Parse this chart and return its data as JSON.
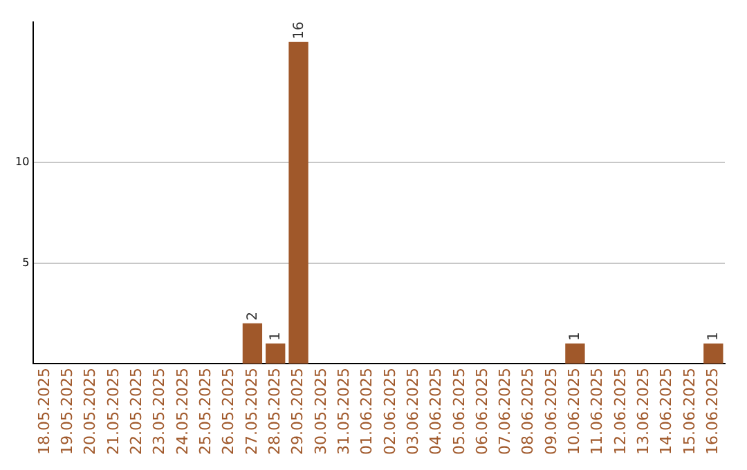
{
  "chart_data": {
    "type": "bar",
    "categories": [
      "18.05.2025",
      "19.05.2025",
      "20.05.2025",
      "21.05.2025",
      "22.05.2025",
      "23.05.2025",
      "24.05.2025",
      "25.05.2025",
      "26.05.2025",
      "27.05.2025",
      "28.05.2025",
      "29.05.2025",
      "30.05.2025",
      "31.05.2025",
      "01.06.2025",
      "02.06.2025",
      "03.06.2025",
      "04.06.2025",
      "05.06.2025",
      "06.06.2025",
      "07.06.2025",
      "08.06.2025",
      "09.06.2025",
      "10.06.2025",
      "11.06.2025",
      "12.06.2025",
      "13.06.2025",
      "14.06.2025",
      "15.06.2025",
      "16.06.2025"
    ],
    "values": [
      0,
      0,
      0,
      0,
      0,
      0,
      0,
      0,
      0,
      2,
      1,
      16,
      0,
      0,
      0,
      0,
      0,
      0,
      0,
      0,
      0,
      0,
      0,
      1,
      0,
      0,
      0,
      0,
      0,
      1
    ],
    "value_labels": [
      null,
      null,
      null,
      null,
      null,
      null,
      null,
      null,
      null,
      "2",
      "1",
      "16",
      null,
      null,
      null,
      null,
      null,
      null,
      null,
      null,
      null,
      null,
      null,
      "1",
      null,
      null,
      null,
      null,
      null,
      "1"
    ],
    "color": "#a0582a",
    "ylim": [
      0,
      17
    ],
    "yticks": [
      5,
      10
    ],
    "grid": "y"
  }
}
